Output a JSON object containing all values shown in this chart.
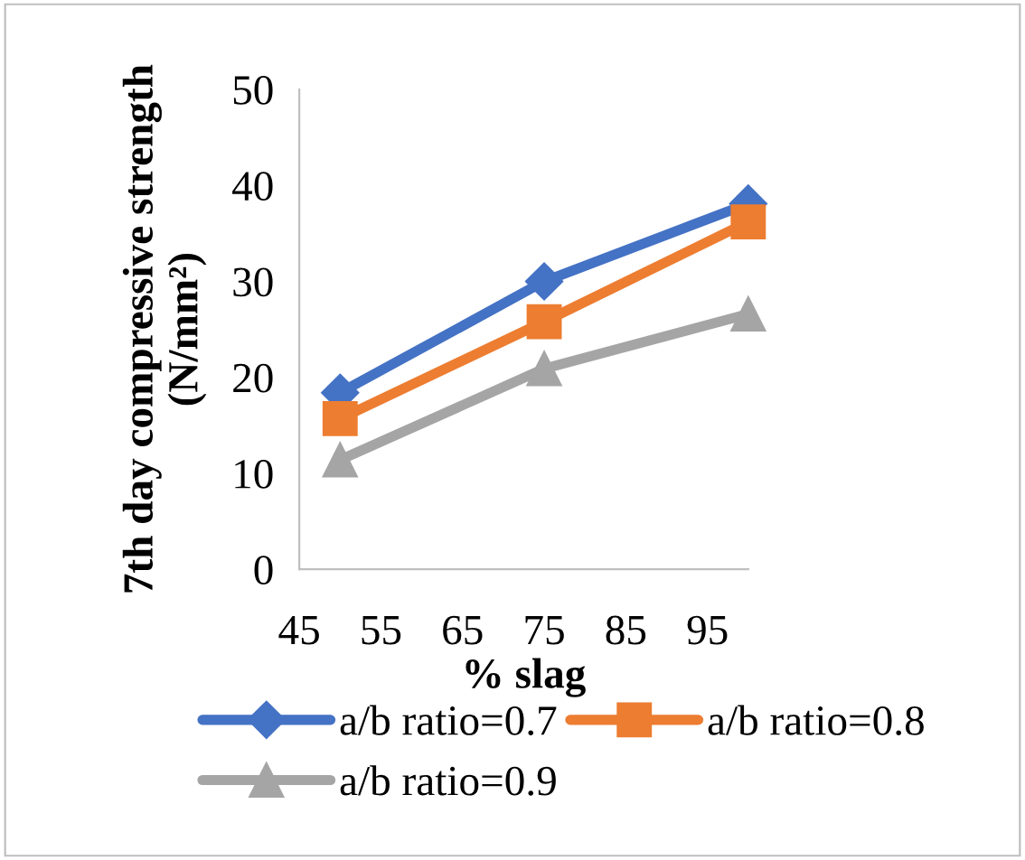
{
  "chart_data": {
    "type": "line",
    "xlabel": "% slag",
    "ylabel": "7th day compressive strength (N/mm²)",
    "x": [
      50,
      75,
      100
    ],
    "series": [
      {
        "name": "a/b ratio=0.7",
        "color": "#4472c4",
        "values": [
          18.4,
          30,
          38.1
        ],
        "marker": "diamond"
      },
      {
        "name": "a/b ratio=0.8",
        "color": "#ed7d31",
        "values": [
          15.7,
          25.8,
          36.2
        ],
        "marker": "square"
      },
      {
        "name": "a/b ratio=0.9",
        "color": "#a5a5a5",
        "values": [
          11.4,
          20.9,
          26.6
        ],
        "marker": "triangle"
      }
    ],
    "xlim": [
      45,
      100
    ],
    "xticks": [
      45,
      55,
      65,
      75,
      85,
      95
    ],
    "ylim": [
      0,
      50
    ],
    "yticks": [
      0,
      10,
      20,
      30,
      40,
      50
    ],
    "grid": false,
    "legend": "bottom",
    "line_style": "solid"
  }
}
